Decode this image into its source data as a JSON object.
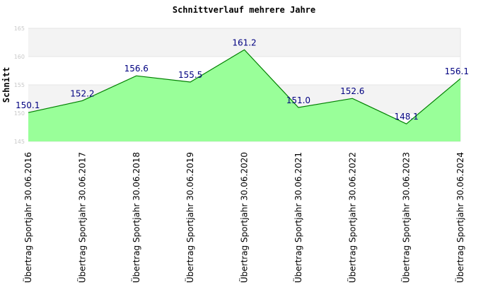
{
  "chart_data": {
    "type": "area",
    "title": "Schnittverlauf mehrere Jahre",
    "xlabel": "",
    "ylabel": "Schnitt",
    "ylim": [
      145,
      165
    ],
    "yticks": [
      "145",
      "150",
      "155",
      "160",
      "165"
    ],
    "grid": true,
    "categories": [
      "Übertrag Sportjahr 30.06.2016",
      "Übertrag Sportjahr 30.06.2017",
      "Übertrag Sportjahr 30.06.2018",
      "Übertrag Sportjahr 30.06.2019",
      "Übertrag Sportjahr 30.06.2020",
      "Übertrag Sportjahr 30.06.2021",
      "Übertrag Sportjahr 30.06.2022",
      "Übertrag Sportjahr 30.06.2023",
      "Übertrag Sportjahr 30.06.2024"
    ],
    "values": [
      150.1,
      152.2,
      156.6,
      155.5,
      161.2,
      151.0,
      152.6,
      148.1,
      156.1
    ],
    "labels": [
      "150.1",
      "152.2",
      "156.6",
      "155.5",
      "161.2",
      "151.0",
      "152.6",
      "148.1",
      "156.1"
    ],
    "colors": {
      "fill": "#99ff99",
      "line": "#008000",
      "band": "#f3f3f3",
      "grid": "#e6e6e6",
      "label": "#000080"
    }
  }
}
